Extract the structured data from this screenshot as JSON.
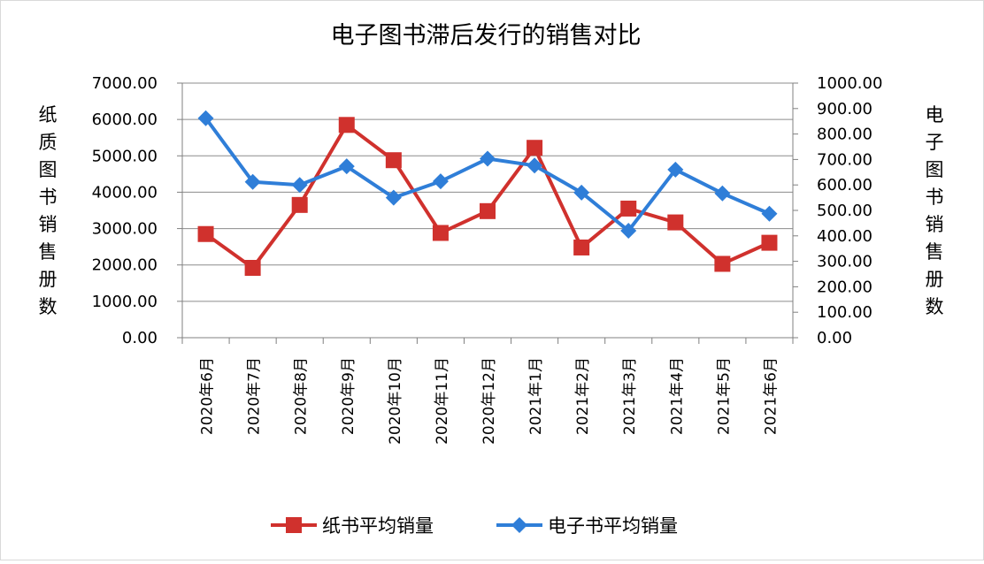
{
  "chart_data": {
    "type": "line",
    "title": "电子图书滞后发行的销售对比",
    "ylabel_left": "纸质图书销售册数",
    "ylabel_right": "电子图书销售册数",
    "categories": [
      "2020年6月",
      "2020年7月",
      "2020年8月",
      "2020年9月",
      "2020年10月",
      "2020年11月",
      "2020年12月",
      "2021年1月",
      "2021年2月",
      "2021年3月",
      "2021年4月",
      "2021年5月",
      "2021年6月"
    ],
    "ylim_left": [
      0,
      7000
    ],
    "ylim_right": [
      0,
      1000
    ],
    "yticks_left": [
      "0.00",
      "1000.00",
      "2000.00",
      "3000.00",
      "4000.00",
      "5000.00",
      "6000.00",
      "7000.00"
    ],
    "yticks_right": [
      "0.00",
      "100.00",
      "200.00",
      "300.00",
      "400.00",
      "500.00",
      "600.00",
      "700.00",
      "800.00",
      "900.00",
      "1000.00"
    ],
    "grid": true,
    "legend_position": "bottom",
    "series": [
      {
        "name": "纸书平均销量",
        "axis": "left",
        "color": "#d0312d",
        "marker": "square",
        "values": [
          2850,
          1920,
          3650,
          5850,
          4880,
          2880,
          3480,
          5220,
          2480,
          3550,
          3170,
          2030,
          2610
        ]
      },
      {
        "name": "电子书平均销量",
        "axis": "right",
        "color": "#2f7ed8",
        "marker": "diamond",
        "values": [
          862,
          612,
          600,
          673,
          550,
          614,
          703,
          676,
          570,
          420,
          660,
          567,
          487
        ]
      }
    ]
  }
}
